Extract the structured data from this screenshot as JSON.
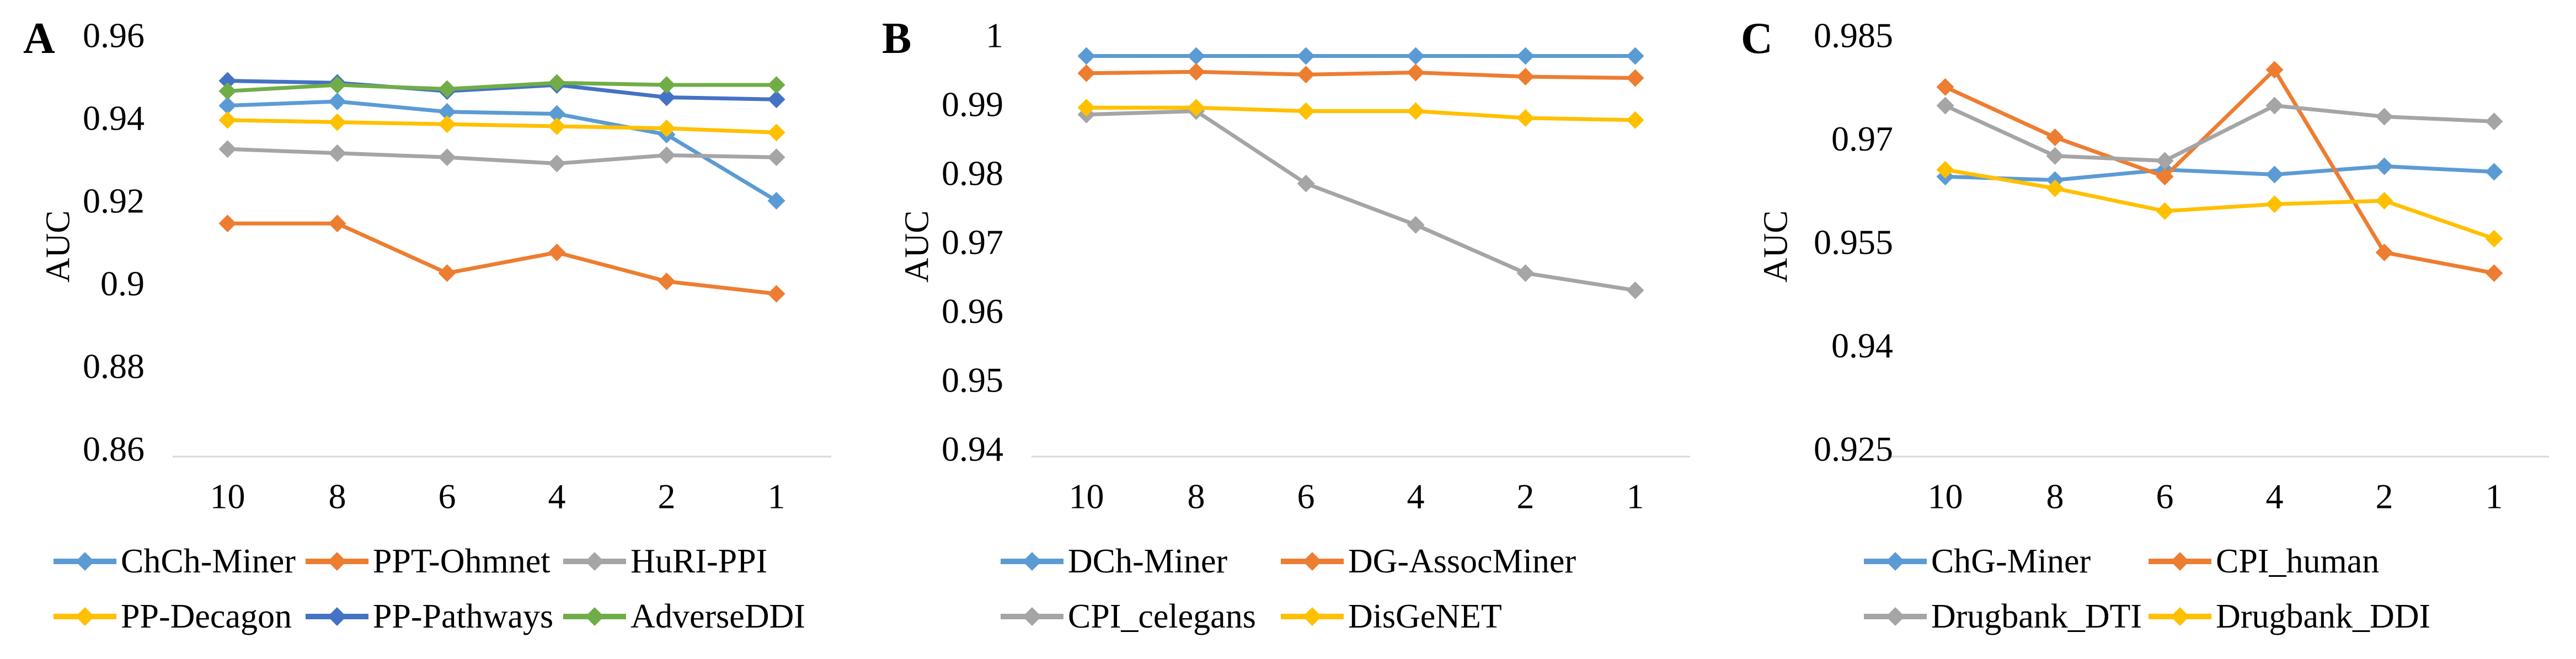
{
  "figure": {
    "background": "#ffffff",
    "axis_line_color": "#d9d9d9",
    "text_color": "#000000"
  },
  "chart_data": [
    {
      "type": "line",
      "panel": "A",
      "title": "",
      "xlabel": "",
      "ylabel": "AUC",
      "categories": [
        "10",
        "8",
        "6",
        "4",
        "2",
        "1"
      ],
      "ylim": [
        0.86,
        0.96
      ],
      "ytick_values": [
        0.96,
        0.94,
        0.92,
        0.9,
        0.88,
        0.86
      ],
      "ytick_labels": [
        "0.96",
        "0.94",
        "0.92",
        "0.9",
        "0.88",
        "0.86"
      ],
      "grid": false,
      "legend_position": "bottom",
      "legend_cols": 3,
      "series": [
        {
          "name": "ChCh-Miner",
          "color": "#5B9BD5",
          "values": [
            0.943,
            0.944,
            0.9415,
            0.941,
            0.936,
            0.92
          ]
        },
        {
          "name": "PPT-Ohmnet",
          "color": "#ED7D31",
          "values": [
            0.9145,
            0.9145,
            0.9025,
            0.9075,
            0.9005,
            0.8975
          ]
        },
        {
          "name": "HuRI-PPI",
          "color": "#A5A5A5",
          "values": [
            0.9325,
            0.9315,
            0.9305,
            0.929,
            0.931,
            0.9305
          ]
        },
        {
          "name": "PP-Decagon",
          "color": "#FFC000",
          "values": [
            0.9395,
            0.939,
            0.9385,
            0.938,
            0.9375,
            0.9365
          ]
        },
        {
          "name": "PP-Pathways",
          "color": "#4472C4",
          "values": [
            0.949,
            0.9485,
            0.9465,
            0.948,
            0.945,
            0.9445
          ]
        },
        {
          "name": "AdverseDDI",
          "color": "#70AD47",
          "values": [
            0.9465,
            0.948,
            0.947,
            0.9485,
            0.948,
            0.948
          ]
        }
      ]
    },
    {
      "type": "line",
      "panel": "B",
      "title": "",
      "xlabel": "",
      "ylabel": "AUC",
      "categories": [
        "10",
        "8",
        "6",
        "4",
        "2",
        "1"
      ],
      "ylim": [
        0.94,
        1.0
      ],
      "ytick_values": [
        1.0,
        0.99,
        0.98,
        0.97,
        0.96,
        0.95,
        0.94
      ],
      "ytick_labels": [
        "1",
        "0.99",
        "0.98",
        "0.97",
        "0.96",
        "0.95",
        "0.94"
      ],
      "grid": false,
      "legend_position": "bottom",
      "legend_cols": 2,
      "series": [
        {
          "name": "DCh-Miner",
          "color": "#5B9BD5",
          "values": [
            0.997,
            0.997,
            0.997,
            0.997,
            0.997,
            0.997
          ]
        },
        {
          "name": "DG-AssocMiner",
          "color": "#ED7D31",
          "values": [
            0.9945,
            0.9947,
            0.9943,
            0.9946,
            0.994,
            0.9938
          ]
        },
        {
          "name": "CPI_celegans",
          "color": "#A5A5A5",
          "values": [
            0.9885,
            0.989,
            0.9785,
            0.9725,
            0.9655,
            0.963
          ]
        },
        {
          "name": "DisGeNET",
          "color": "#FFC000",
          "values": [
            0.9895,
            0.9895,
            0.989,
            0.989,
            0.988,
            0.9877
          ]
        }
      ]
    },
    {
      "type": "line",
      "panel": "C",
      "title": "",
      "xlabel": "",
      "ylabel": "AUC",
      "categories": [
        "10",
        "8",
        "6",
        "4",
        "2",
        "1"
      ],
      "ylim": [
        0.925,
        0.985
      ],
      "ytick_values": [
        0.985,
        0.97,
        0.955,
        0.94,
        0.925
      ],
      "ytick_labels": [
        "0.985",
        "0.97",
        "0.955",
        "0.94",
        "0.925"
      ],
      "grid": false,
      "legend_position": "bottom",
      "legend_cols": 2,
      "series": [
        {
          "name": "ChG-Miner",
          "color": "#5B9BD5",
          "values": [
            0.9645,
            0.964,
            0.9655,
            0.9648,
            0.966,
            0.9652
          ]
        },
        {
          "name": "CPI_human",
          "color": "#ED7D31",
          "values": [
            0.9775,
            0.9702,
            0.9645,
            0.98,
            0.9535,
            0.9505
          ]
        },
        {
          "name": "Drugbank_DTI",
          "color": "#A5A5A5",
          "values": [
            0.9748,
            0.9675,
            0.9668,
            0.9748,
            0.9732,
            0.9725
          ]
        },
        {
          "name": "Drugbank_DDI",
          "color": "#FFC000",
          "values": [
            0.9655,
            0.9628,
            0.9595,
            0.9605,
            0.961,
            0.9555
          ]
        }
      ]
    }
  ]
}
